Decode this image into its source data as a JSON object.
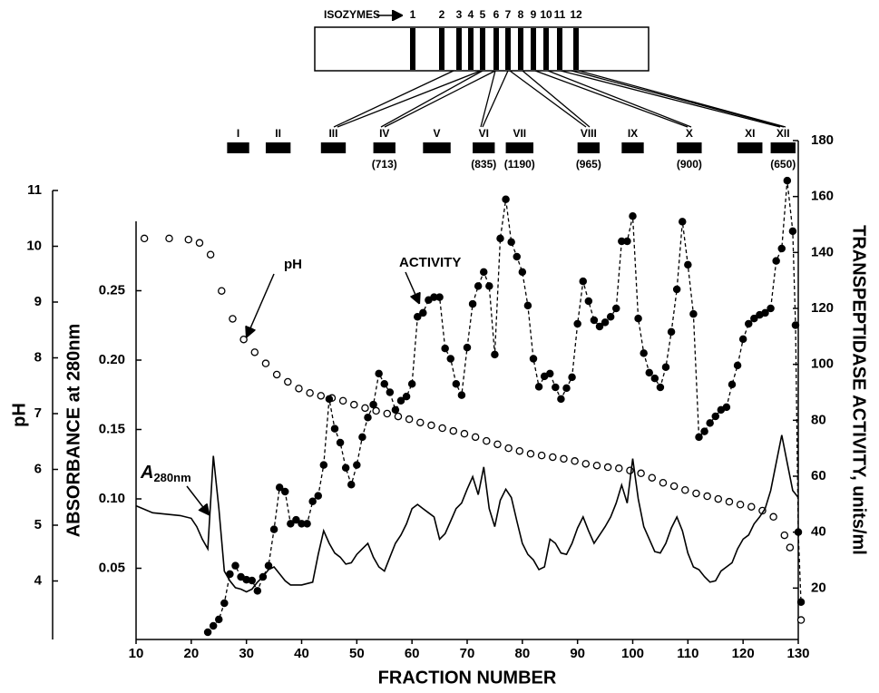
{
  "chart_data": {
    "type": "line",
    "xlabel": "FRACTION NUMBER",
    "xlim": [
      10,
      130
    ],
    "xticks": [
      10,
      20,
      30,
      40,
      50,
      60,
      70,
      80,
      90,
      100,
      110,
      120,
      130
    ],
    "axes": [
      {
        "label": "pH",
        "lim": [
          3,
          11
        ],
        "ticks": [
          4,
          5,
          6,
          7,
          8,
          9,
          10,
          11
        ]
      },
      {
        "label": "ABSORBANCE at 280nm",
        "lim": [
          0,
          0.3
        ],
        "ticks": [
          0.05,
          {
            "value": 0.1,
            "label": "0.10"
          },
          0.15,
          {
            "value": 0.2,
            "label": "0.20"
          },
          0.25
        ]
      },
      {
        "label": "TRANSPEPTIDASE ACTIVITY, units/ml",
        "lim": [
          0,
          180
        ],
        "ticks": [
          20,
          40,
          60,
          80,
          100,
          120,
          140,
          160,
          180
        ]
      }
    ],
    "series": [
      {
        "name": "pH",
        "axis": 0,
        "style": "open-circles",
        "color": "#000000",
        "x": [
          11.5,
          16,
          19.5,
          21.5,
          23.5,
          25.5,
          27.5,
          29.5,
          31.5,
          33.5,
          35.5,
          37.5,
          39.5,
          41.5,
          43.5,
          45.5,
          47.5,
          49.5,
          51.5,
          53.5,
          55.5,
          57.5,
          59.5,
          61.5,
          63.5,
          65.5,
          67.5,
          69.5,
          71.5,
          73.5,
          75.5,
          77.5,
          79.5,
          81.5,
          83.5,
          85.5,
          87.5,
          89.5,
          91.5,
          93.5,
          95.5,
          97.5,
          99.5,
          101.5,
          103.5,
          105.5,
          107.5,
          109.5,
          111.5,
          113.5,
          115.5,
          117.5,
          119.5,
          121.5,
          123.5,
          125.5,
          127.5,
          128.5,
          130.5
        ],
        "values": [
          10.14,
          10.14,
          10.12,
          10.06,
          9.85,
          9.2,
          8.7,
          8.33,
          8.1,
          7.9,
          7.7,
          7.57,
          7.45,
          7.37,
          7.32,
          7.28,
          7.23,
          7.16,
          7.1,
          7.05,
          7.0,
          6.95,
          6.9,
          6.84,
          6.79,
          6.74,
          6.69,
          6.64,
          6.58,
          6.51,
          6.45,
          6.38,
          6.33,
          6.28,
          6.25,
          6.22,
          6.19,
          6.15,
          6.1,
          6.07,
          6.04,
          6.02,
          5.98,
          5.93,
          5.85,
          5.76,
          5.7,
          5.63,
          5.57,
          5.52,
          5.47,
          5.42,
          5.37,
          5.33,
          5.26,
          5.15,
          4.82,
          4.6,
          3.3
        ]
      },
      {
        "name": "ACTIVITY",
        "axis": 2,
        "style": "dashed-dots",
        "color": "#000000",
        "x": [
          23,
          24,
          25,
          26,
          27,
          28,
          29,
          30,
          31,
          32,
          33,
          34,
          35,
          36,
          37,
          38,
          39,
          40,
          41,
          42,
          43,
          44,
          45,
          46,
          47,
          48,
          49,
          50,
          51,
          52,
          53,
          54,
          55,
          56,
          57,
          58,
          59,
          60,
          61,
          62,
          63,
          64,
          65,
          66,
          67,
          68,
          69,
          70,
          71,
          72,
          73,
          74,
          75,
          76,
          77,
          78,
          79,
          80,
          81,
          82,
          83,
          84,
          85,
          86,
          87,
          88,
          89,
          90,
          91,
          92,
          93,
          94,
          95,
          96,
          97,
          98,
          99,
          100,
          101,
          102,
          103,
          104,
          105,
          106,
          107,
          108,
          109,
          110,
          111,
          112,
          113,
          114,
          115,
          116,
          117,
          118,
          119,
          120,
          121,
          122,
          123,
          124,
          125,
          126,
          127,
          128,
          129,
          129.5,
          130,
          130.5
        ],
        "values": [
          4.2,
          6.5,
          8.8,
          14.6,
          25,
          28,
          24,
          23,
          22.7,
          19,
          24,
          28,
          41,
          56,
          54.5,
          43,
          44.4,
          43,
          43,
          51,
          53,
          64,
          87.6,
          77,
          72,
          63,
          57,
          64,
          74,
          81,
          85.6,
          96.7,
          93,
          90,
          83.7,
          87,
          88.5,
          93,
          117,
          118.4,
          123,
          124,
          124,
          105.7,
          102,
          93,
          89,
          106,
          121.6,
          128,
          133,
          128,
          103.5,
          145,
          159,
          143.7,
          138.5,
          133,
          121,
          102,
          92,
          95.7,
          96.7,
          91.8,
          87.6,
          91.5,
          95.4,
          114.5,
          129.7,
          122.6,
          115.8,
          113.5,
          115,
          117,
          120,
          144,
          144,
          153,
          116.4,
          104,
          97,
          95,
          91.8,
          99,
          111.6,
          126.8,
          151,
          135.6,
          118,
          74,
          76,
          79,
          81.4,
          83.7,
          84.7,
          92.8,
          99.6,
          109,
          114.5,
          116.4,
          117.7,
          118.4,
          120,
          137,
          141.4,
          165.7,
          147.6,
          114,
          40,
          15
        ]
      },
      {
        "name": "A",
        "name_sub": "280nm",
        "axis": 1,
        "style": "solid",
        "color": "#000000",
        "x": [
          10,
          13,
          18,
          20,
          21,
          22,
          23,
          24,
          25,
          26,
          27,
          28,
          29,
          30,
          31,
          32,
          33,
          34,
          35,
          36,
          37,
          38,
          40,
          42,
          43,
          44,
          45,
          46,
          47,
          48,
          49,
          50,
          51,
          52,
          53,
          54,
          55,
          56,
          57,
          58,
          59,
          60,
          61,
          62,
          63,
          64,
          65,
          66,
          67,
          68,
          69,
          70,
          71,
          72,
          73,
          74,
          75,
          76,
          77,
          78,
          79,
          80,
          81,
          82,
          83,
          84,
          85,
          86,
          87,
          88,
          89,
          90,
          91,
          92,
          93,
          94,
          95,
          96,
          97,
          98,
          99,
          100,
          101,
          102,
          103,
          104,
          105,
          106,
          107,
          108,
          109,
          110,
          111,
          112,
          113,
          114,
          115,
          116,
          117,
          118,
          119,
          120,
          121,
          122,
          123,
          124,
          125,
          126,
          127,
          128,
          129,
          130
        ],
        "values": [
          0.095,
          0.09,
          0.088,
          0.086,
          0.08,
          0.071,
          0.064,
          0.131,
          0.093,
          0.048,
          0.041,
          0.036,
          0.035,
          0.033,
          0.035,
          0.04,
          0.044,
          0.049,
          0.051,
          0.046,
          0.041,
          0.038,
          0.038,
          0.04,
          0.06,
          0.077,
          0.068,
          0.061,
          0.058,
          0.053,
          0.054,
          0.06,
          0.064,
          0.068,
          0.058,
          0.051,
          0.048,
          0.058,
          0.068,
          0.074,
          0.082,
          0.093,
          0.096,
          0.093,
          0.09,
          0.087,
          0.071,
          0.075,
          0.084,
          0.093,
          0.097,
          0.107,
          0.116,
          0.103,
          0.123,
          0.093,
          0.08,
          0.099,
          0.107,
          0.101,
          0.084,
          0.068,
          0.06,
          0.056,
          0.049,
          0.051,
          0.071,
          0.068,
          0.061,
          0.06,
          0.068,
          0.079,
          0.087,
          0.077,
          0.068,
          0.074,
          0.08,
          0.087,
          0.097,
          0.11,
          0.097,
          0.129,
          0.1,
          0.08,
          0.071,
          0.062,
          0.061,
          0.068,
          0.079,
          0.087,
          0.077,
          0.061,
          0.051,
          0.049,
          0.044,
          0.04,
          0.041,
          0.048,
          0.051,
          0.054,
          0.064,
          0.071,
          0.074,
          0.082,
          0.087,
          0.093,
          0.106,
          0.126,
          0.146,
          0.126,
          0.106,
          0.101
        ]
      }
    ],
    "isozymes": {
      "label": "ISOZYMES",
      "bands": [
        "1",
        "2",
        "3",
        "4",
        "5",
        "6",
        "7",
        "8",
        "9",
        "10",
        "11",
        "12"
      ]
    },
    "pools": [
      {
        "label": "I",
        "range": [
          26.5,
          30.5
        ]
      },
      {
        "label": "II",
        "range": [
          33.5,
          38
        ]
      },
      {
        "label": "III",
        "range": [
          43.5,
          48
        ]
      },
      {
        "label": "IV",
        "range": [
          53,
          57
        ],
        "note": "(713)"
      },
      {
        "label": "V",
        "range": [
          62,
          67
        ]
      },
      {
        "label": "VI",
        "range": [
          71,
          75
        ],
        "note": "(835)"
      },
      {
        "label": "VII",
        "range": [
          77,
          82
        ],
        "note": "(1190)"
      },
      {
        "label": "VIII",
        "range": [
          90,
          94
        ],
        "note": "(965)"
      },
      {
        "label": "IX",
        "range": [
          98,
          102
        ]
      },
      {
        "label": "X",
        "range": [
          108,
          112.5
        ],
        "note": "(900)"
      },
      {
        "label": "XI",
        "range": [
          119,
          123.5
        ]
      },
      {
        "label": "XII",
        "range": [
          125,
          129.5
        ],
        "note": "(650)"
      }
    ]
  }
}
